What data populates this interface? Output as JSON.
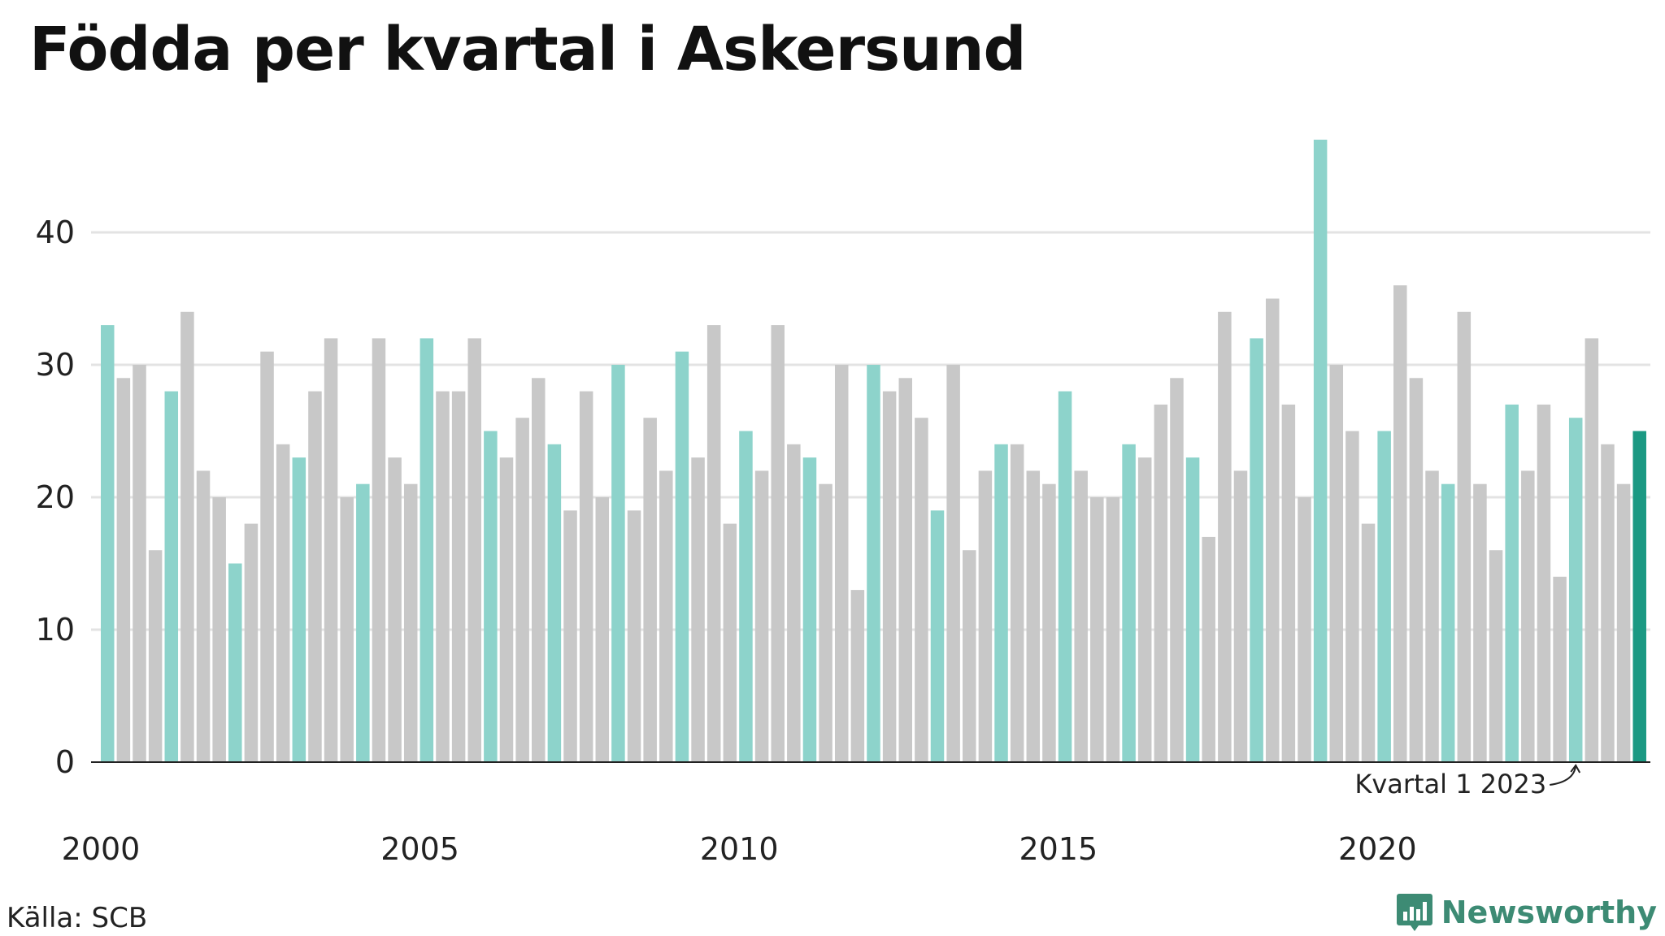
{
  "title": "Födda per kvartal i Askersund",
  "source": "Källa: SCB",
  "brand": {
    "name": "Newsworthy",
    "icon": "newsworthy-logo-icon",
    "color": "#3d8b74"
  },
  "colors": {
    "q1": "#8dd3cb",
    "other": "#c8c8c8",
    "latest": "#1b9983",
    "grid": "#e3e3e3",
    "axis": "#222222"
  },
  "chart_data": {
    "type": "bar",
    "title": "Födda per kvartal i Askersund",
    "xlabel": "",
    "ylabel": "",
    "ylim": [
      0,
      48
    ],
    "y_ticks": [
      0,
      10,
      20,
      30,
      40
    ],
    "x_tick_labels": [
      "2000",
      "2005",
      "2010",
      "2015",
      "2020"
    ],
    "grid": true,
    "start_year": 2000,
    "highlight": "Q1 bars in light teal; latest bar in dark teal",
    "annotation": {
      "text": "Kvartal 1 2023",
      "target": "2023 Q1"
    },
    "values": [
      33,
      29,
      30,
      16,
      28,
      34,
      22,
      20,
      15,
      18,
      31,
      24,
      23,
      28,
      32,
      20,
      21,
      32,
      23,
      21,
      32,
      28,
      28,
      32,
      25,
      23,
      26,
      29,
      24,
      19,
      28,
      20,
      30,
      19,
      26,
      22,
      31,
      23,
      33,
      18,
      25,
      22,
      33,
      24,
      23,
      21,
      30,
      13,
      30,
      28,
      29,
      26,
      19,
      30,
      16,
      22,
      24,
      24,
      22,
      21,
      28,
      22,
      20,
      20,
      24,
      23,
      27,
      29,
      23,
      17,
      34,
      22,
      32,
      35,
      27,
      20,
      47,
      30,
      25,
      18,
      25,
      36,
      29,
      22,
      21,
      34,
      21,
      16,
      27,
      22,
      27,
      14,
      26,
      32,
      24,
      21,
      25
    ]
  }
}
